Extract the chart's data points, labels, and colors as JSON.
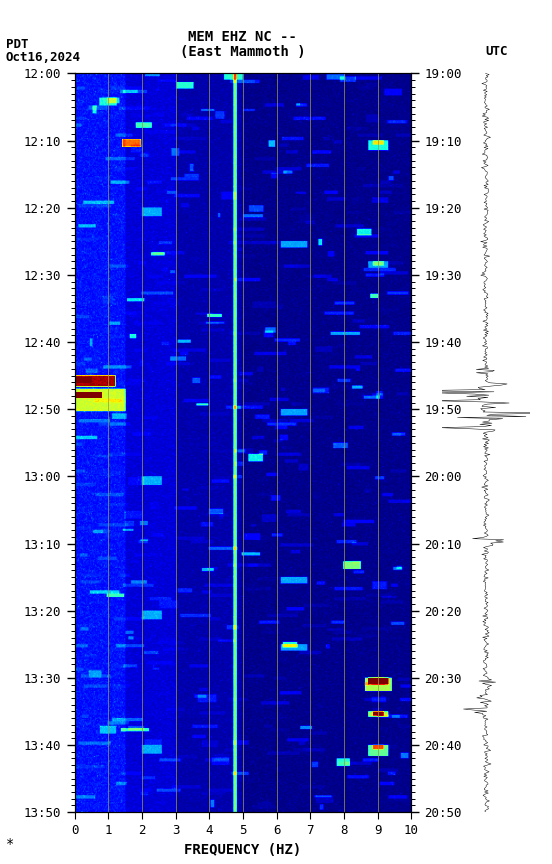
{
  "title_line1": "MEM EHZ NC --",
  "title_line2": "(East Mammoth )",
  "left_label": "PDT   Oct16,2024",
  "right_label": "UTC",
  "xlabel": "FREQUENCY (HZ)",
  "freq_min": 0,
  "freq_max": 10,
  "pdt_ticks": [
    "12:00",
    "12:10",
    "12:20",
    "12:30",
    "12:40",
    "12:50",
    "13:00",
    "13:10",
    "13:20",
    "13:30",
    "13:40",
    "13:50"
  ],
  "utc_ticks": [
    "19:00",
    "19:10",
    "19:20",
    "19:30",
    "19:40",
    "19:50",
    "20:00",
    "20:10",
    "20:20",
    "20:30",
    "20:40",
    "20:50"
  ],
  "freq_ticks": [
    0,
    1,
    2,
    3,
    4,
    5,
    6,
    7,
    8,
    9,
    10
  ],
  "colormap": "jet",
  "vertical_lines_freq": [
    1.0,
    2.0,
    3.0,
    4.0,
    5.0,
    6.0,
    7.0,
    8.0,
    9.0
  ],
  "note_text": "*",
  "fig_width": 5.52,
  "fig_height": 8.64
}
